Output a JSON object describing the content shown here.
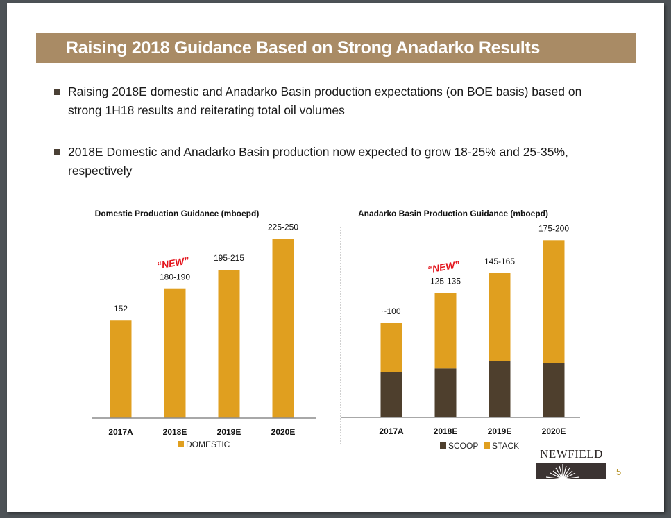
{
  "slide": {
    "title": "Raising 2018 Guidance Based on Strong Anadarko Results",
    "bullets": [
      "Raising 2018E domestic and Anadarko Basin production expectations (on BOE basis) based on strong 1H18 results and reiterating total oil volumes",
      "2018E Domestic and Anadarko Basin production now expected to grow 18-25% and 25-35%, respectively"
    ],
    "logo_text": "NEWFIELD",
    "page_number": "5",
    "colors": {
      "title_bar": "#a98b65",
      "domestic": "#e09f1f",
      "stack": "#e09f1f",
      "scoop": "#4e3f2d",
      "new_label": "#e3131b"
    }
  },
  "chart_data": [
    {
      "type": "bar",
      "title": "Domestic Production Guidance (mboepd)",
      "categories": [
        "2017A",
        "2018E",
        "2019E",
        "2020E"
      ],
      "series": [
        {
          "name": "DOMESTIC",
          "values": [
            152,
            185,
            205,
            237.5
          ]
        }
      ],
      "data_labels": [
        "152",
        "180-190",
        "195-215",
        "225-250"
      ],
      "annotations": [
        {
          "category": "2018E",
          "text": "“NEW”"
        }
      ],
      "xlabel": "",
      "ylabel": "",
      "ylim": [
        50,
        250
      ],
      "grid": false,
      "legend": "bottom"
    },
    {
      "type": "bar",
      "stacked": true,
      "title": "Anadarko Basin Production Guidance (mboepd)",
      "categories": [
        "2017A",
        "2018E",
        "2019E",
        "2020E"
      ],
      "series": [
        {
          "name": "SCOOP",
          "values": [
            48,
            52,
            60,
            58
          ]
        },
        {
          "name": "STACK",
          "values": [
            52,
            80,
            93,
            130
          ]
        }
      ],
      "data_labels": [
        "~100",
        "125-135",
        "145-165",
        "175-200"
      ],
      "annotations": [
        {
          "category": "2018E",
          "text": "“NEW”"
        }
      ],
      "xlabel": "",
      "ylabel": "",
      "ylim": [
        0,
        200
      ],
      "grid": false,
      "legend": "bottom"
    }
  ]
}
